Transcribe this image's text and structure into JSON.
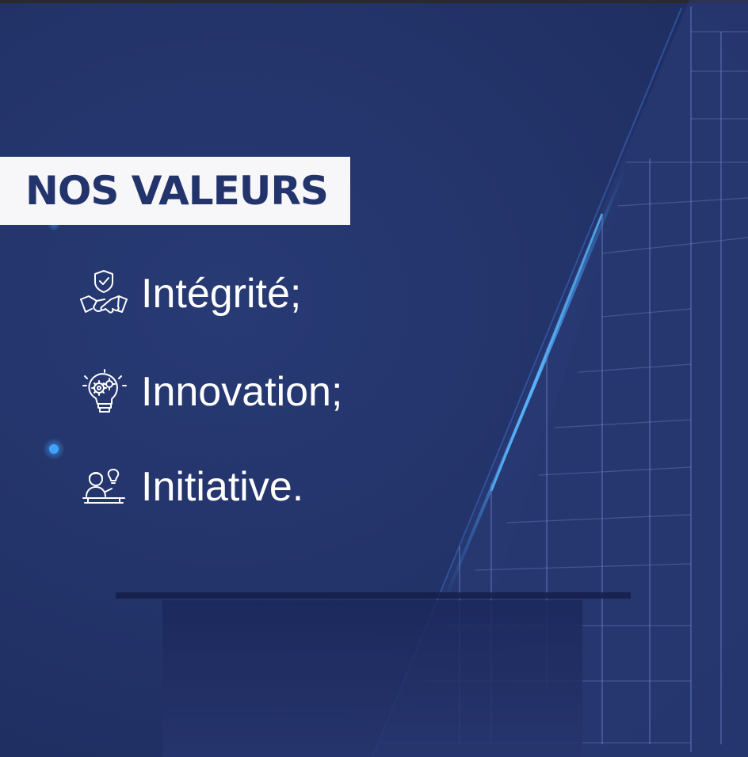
{
  "title": "NOS VALEURS",
  "values": [
    {
      "label": "Intégrité;",
      "icon": "handshake-shield-icon"
    },
    {
      "label": "Innovation;",
      "icon": "gears-lightbulb-icon"
    },
    {
      "label": "Initiative.",
      "icon": "person-idea-icon"
    }
  ],
  "colors": {
    "background": "#23346a",
    "title_box": "#f7f7f9",
    "title_text": "#23346c",
    "text": "#ffffff",
    "accent_glow": "#3fa3ff"
  }
}
